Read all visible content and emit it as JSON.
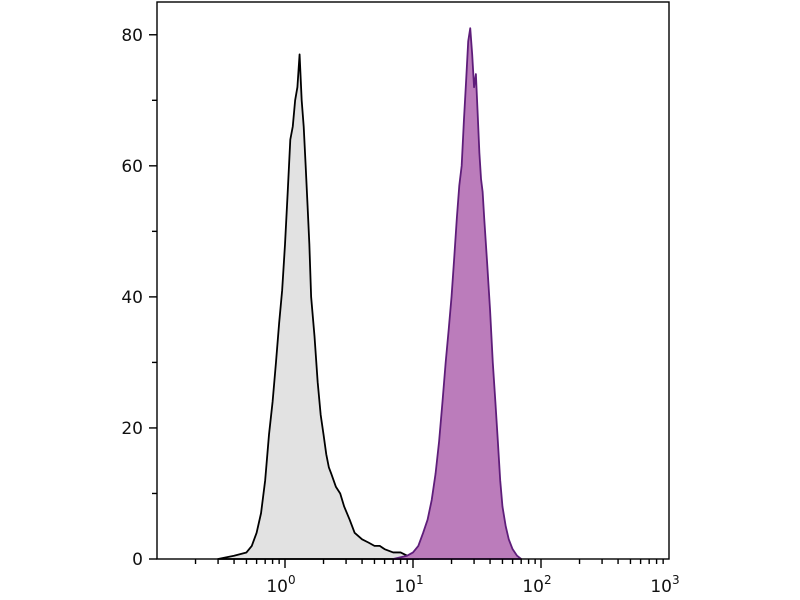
{
  "chart_data": {
    "type": "area",
    "title": "",
    "xlabel": "",
    "ylabel": "",
    "x_scale": "log",
    "xlim": [
      0.1,
      1000
    ],
    "ylim": [
      0,
      85
    ],
    "grid": false,
    "legend": "none",
    "y_ticks": [
      {
        "value": 0,
        "label": "0"
      },
      {
        "value": 20,
        "label": "20"
      },
      {
        "value": 40,
        "label": "40"
      },
      {
        "value": 60,
        "label": "60"
      },
      {
        "value": 80,
        "label": "80"
      }
    ],
    "x_ticks": [
      {
        "value": 1,
        "base": "10",
        "exp": "0"
      },
      {
        "value": 10,
        "base": "10",
        "exp": "1"
      },
      {
        "value": 100,
        "base": "10",
        "exp": "2"
      },
      {
        "value": 1000,
        "base": "10",
        "exp": "3"
      }
    ],
    "series": [
      {
        "fill": "#e2e2e2",
        "stroke": "#000000",
        "x": [
          0.3,
          0.4,
          0.5,
          0.55,
          0.6,
          0.65,
          0.7,
          0.75,
          0.8,
          0.85,
          0.9,
          0.95,
          1.0,
          1.05,
          1.1,
          1.15,
          1.2,
          1.25,
          1.3,
          1.35,
          1.4,
          1.45,
          1.5,
          1.55,
          1.6,
          1.7,
          1.8,
          1.9,
          2.0,
          2.1,
          2.2,
          2.3,
          2.5,
          2.7,
          2.9,
          3.2,
          3.5,
          4.0,
          4.5,
          5.0,
          5.5,
          6.0,
          7.0,
          8.0,
          9.0,
          10.0,
          11.0
        ],
        "y": [
          0,
          0.5,
          1,
          2,
          4,
          7,
          12,
          19,
          24,
          30,
          36,
          41,
          48,
          56,
          64,
          66,
          70,
          72,
          77,
          70,
          66,
          60,
          54,
          48,
          40,
          34,
          27,
          22,
          19,
          16,
          14,
          13,
          11,
          10,
          8,
          6,
          4,
          3,
          2.5,
          2,
          2,
          1.5,
          1,
          1,
          0.5,
          0.5,
          0
        ]
      },
      {
        "fill": "#bb7cbb",
        "stroke": "#5e1d7a",
        "x": [
          7.0,
          9.0,
          10.0,
          11.0,
          12.0,
          13.0,
          14.0,
          15.0,
          16.0,
          17.0,
          18.0,
          19.0,
          20.0,
          21.0,
          22.0,
          23.0,
          24.0,
          25.0,
          26.0,
          27.0,
          28.0,
          29.0,
          30.0,
          31.0,
          32.0,
          33.0,
          34.0,
          35.0,
          36.0,
          38.0,
          40.0,
          42.0,
          44.0,
          46.0,
          48.0,
          50.0,
          53.0,
          56.0,
          60.0,
          65.0,
          70.0
        ],
        "y": [
          0,
          0.5,
          1,
          2,
          4,
          6,
          9,
          13,
          18,
          24,
          30,
          35,
          40,
          46,
          52,
          57,
          60,
          67,
          73,
          79,
          81,
          77,
          72,
          74,
          68,
          62,
          58,
          56,
          52,
          45,
          38,
          30,
          24,
          18,
          12,
          8,
          5,
          3,
          1.5,
          0.5,
          0
        ]
      }
    ]
  }
}
